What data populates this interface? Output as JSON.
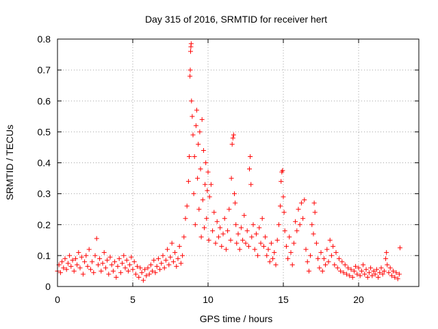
{
  "chart_data": {
    "type": "scatter",
    "title": "Day 315 of 2016, SRMTID for receiver hert",
    "xlabel": "GPS time / hours",
    "ylabel": "SRMTID / TECUs",
    "xlim": [
      0,
      24
    ],
    "ylim": [
      0,
      0.8
    ],
    "xticks": [
      0,
      5,
      10,
      15,
      20
    ],
    "yticks": [
      0,
      0.1,
      0.2,
      0.3,
      0.4,
      0.5,
      0.6,
      0.7,
      0.8
    ],
    "xtick_labels": [
      "0",
      "5",
      "10",
      "15",
      "20"
    ],
    "ytick_labels": [
      "0",
      "0.1",
      "0.2",
      "0.3",
      "0.4",
      "0.5",
      "0.6",
      "0.7",
      "0.8"
    ],
    "grid": true,
    "marker": "+",
    "color": "#ff0000",
    "series": [
      {
        "name": "SRMTID",
        "points": [
          [
            0.0,
            0.05
          ],
          [
            0.1,
            0.07
          ],
          [
            0.2,
            0.045
          ],
          [
            0.3,
            0.08
          ],
          [
            0.4,
            0.06
          ],
          [
            0.5,
            0.09
          ],
          [
            0.6,
            0.055
          ],
          [
            0.7,
            0.075
          ],
          [
            0.8,
            0.1
          ],
          [
            0.9,
            0.065
          ],
          [
            1.0,
            0.085
          ],
          [
            1.1,
            0.05
          ],
          [
            1.2,
            0.09
          ],
          [
            1.3,
            0.07
          ],
          [
            1.4,
            0.11
          ],
          [
            1.5,
            0.06
          ],
          [
            1.6,
            0.095
          ],
          [
            1.7,
            0.04
          ],
          [
            1.8,
            0.08
          ],
          [
            1.9,
            0.1
          ],
          [
            2.0,
            0.065
          ],
          [
            2.1,
            0.12
          ],
          [
            2.2,
            0.055
          ],
          [
            2.3,
            0.08
          ],
          [
            2.4,
            0.045
          ],
          [
            2.5,
            0.1
          ],
          [
            2.6,
            0.155
          ],
          [
            2.7,
            0.07
          ],
          [
            2.8,
            0.09
          ],
          [
            2.9,
            0.05
          ],
          [
            3.0,
            0.075
          ],
          [
            3.1,
            0.11
          ],
          [
            3.2,
            0.06
          ],
          [
            3.3,
            0.085
          ],
          [
            3.4,
            0.04
          ],
          [
            3.5,
            0.095
          ],
          [
            3.6,
            0.07
          ],
          [
            3.7,
            0.05
          ],
          [
            3.8,
            0.08
          ],
          [
            3.9,
            0.03
          ],
          [
            4.0,
            0.065
          ],
          [
            4.1,
            0.09
          ],
          [
            4.2,
            0.045
          ],
          [
            4.3,
            0.075
          ],
          [
            4.4,
            0.1
          ],
          [
            4.5,
            0.06
          ],
          [
            4.6,
            0.085
          ],
          [
            4.7,
            0.05
          ],
          [
            4.8,
            0.07
          ],
          [
            4.9,
            0.095
          ],
          [
            5.0,
            0.055
          ],
          [
            5.1,
            0.08
          ],
          [
            5.2,
            0.04
          ],
          [
            5.3,
            0.065
          ],
          [
            5.4,
            0.03
          ],
          [
            5.5,
            0.06
          ],
          [
            5.6,
            0.045
          ],
          [
            5.7,
            0.02
          ],
          [
            5.8,
            0.055
          ],
          [
            5.9,
            0.035
          ],
          [
            6.0,
            0.06
          ],
          [
            6.1,
            0.04
          ],
          [
            6.2,
            0.07
          ],
          [
            6.3,
            0.05
          ],
          [
            6.4,
            0.085
          ],
          [
            6.5,
            0.045
          ],
          [
            6.6,
            0.065
          ],
          [
            6.7,
            0.09
          ],
          [
            6.8,
            0.055
          ],
          [
            6.9,
            0.075
          ],
          [
            7.0,
            0.1
          ],
          [
            7.1,
            0.06
          ],
          [
            7.2,
            0.085
          ],
          [
            7.3,
            0.12
          ],
          [
            7.4,
            0.07
          ],
          [
            7.5,
            0.095
          ],
          [
            7.6,
            0.14
          ],
          [
            7.7,
            0.08
          ],
          [
            7.8,
            0.11
          ],
          [
            7.9,
            0.065
          ],
          [
            8.0,
            0.09
          ],
          [
            8.1,
            0.13
          ],
          [
            8.2,
            0.075
          ],
          [
            8.3,
            0.1
          ],
          [
            8.4,
            0.16
          ],
          [
            8.5,
            0.22
          ],
          [
            8.6,
            0.26
          ],
          [
            8.7,
            0.34
          ],
          [
            8.75,
            0.42
          ],
          [
            8.8,
            0.68
          ],
          [
            8.82,
            0.7
          ],
          [
            8.84,
            0.76
          ],
          [
            8.86,
            0.775
          ],
          [
            8.88,
            0.785
          ],
          [
            8.9,
            0.6
          ],
          [
            8.95,
            0.55
          ],
          [
            9.0,
            0.49
          ],
          [
            9.05,
            0.3
          ],
          [
            9.1,
            0.42
          ],
          [
            9.15,
            0.2
          ],
          [
            9.2,
            0.52
          ],
          [
            9.25,
            0.57
          ],
          [
            9.3,
            0.35
          ],
          [
            9.35,
            0.46
          ],
          [
            9.4,
            0.25
          ],
          [
            9.45,
            0.5
          ],
          [
            9.5,
            0.38
          ],
          [
            9.55,
            0.16
          ],
          [
            9.6,
            0.54
          ],
          [
            9.65,
            0.28
          ],
          [
            9.7,
            0.44
          ],
          [
            9.75,
            0.19
          ],
          [
            9.8,
            0.33
          ],
          [
            9.85,
            0.4
          ],
          [
            9.9,
            0.22
          ],
          [
            9.95,
            0.31
          ],
          [
            10.0,
            0.37
          ],
          [
            10.05,
            0.15
          ],
          [
            10.1,
            0.29
          ],
          [
            10.2,
            0.33
          ],
          [
            10.3,
            0.18
          ],
          [
            10.4,
            0.24
          ],
          [
            10.5,
            0.14
          ],
          [
            10.6,
            0.21
          ],
          [
            10.7,
            0.16
          ],
          [
            10.8,
            0.19
          ],
          [
            10.9,
            0.13
          ],
          [
            11.0,
            0.17
          ],
          [
            11.1,
            0.22
          ],
          [
            11.2,
            0.12
          ],
          [
            11.3,
            0.18
          ],
          [
            11.4,
            0.25
          ],
          [
            11.5,
            0.15
          ],
          [
            11.55,
            0.35
          ],
          [
            11.6,
            0.46
          ],
          [
            11.65,
            0.48
          ],
          [
            11.7,
            0.49
          ],
          [
            11.75,
            0.3
          ],
          [
            11.8,
            0.27
          ],
          [
            11.85,
            0.2
          ],
          [
            11.9,
            0.14
          ],
          [
            12.0,
            0.17
          ],
          [
            12.1,
            0.12
          ],
          [
            12.2,
            0.19
          ],
          [
            12.3,
            0.15
          ],
          [
            12.4,
            0.23
          ],
          [
            12.5,
            0.14
          ],
          [
            12.6,
            0.18
          ],
          [
            12.7,
            0.13
          ],
          [
            12.75,
            0.38
          ],
          [
            12.8,
            0.42
          ],
          [
            12.85,
            0.33
          ],
          [
            12.9,
            0.16
          ],
          [
            13.0,
            0.2
          ],
          [
            13.1,
            0.12
          ],
          [
            13.2,
            0.17
          ],
          [
            13.3,
            0.1
          ],
          [
            13.4,
            0.19
          ],
          [
            13.5,
            0.14
          ],
          [
            13.6,
            0.22
          ],
          [
            13.7,
            0.13
          ],
          [
            13.8,
            0.16
          ],
          [
            13.9,
            0.1
          ],
          [
            14.0,
            0.12
          ],
          [
            14.1,
            0.08
          ],
          [
            14.2,
            0.14
          ],
          [
            14.3,
            0.09
          ],
          [
            14.4,
            0.11
          ],
          [
            14.5,
            0.07
          ],
          [
            14.6,
            0.15
          ],
          [
            14.7,
            0.2
          ],
          [
            14.8,
            0.26
          ],
          [
            14.85,
            0.34
          ],
          [
            14.9,
            0.37
          ],
          [
            14.95,
            0.375
          ],
          [
            15.0,
            0.29
          ],
          [
            15.05,
            0.24
          ],
          [
            15.1,
            0.18
          ],
          [
            15.2,
            0.13
          ],
          [
            15.3,
            0.09
          ],
          [
            15.4,
            0.16
          ],
          [
            15.5,
            0.11
          ],
          [
            15.6,
            0.07
          ],
          [
            15.7,
            0.14
          ],
          [
            15.8,
            0.21
          ],
          [
            15.9,
            0.18
          ],
          [
            16.0,
            0.25
          ],
          [
            16.1,
            0.2
          ],
          [
            16.2,
            0.27
          ],
          [
            16.3,
            0.22
          ],
          [
            16.4,
            0.28
          ],
          [
            16.5,
            0.12
          ],
          [
            16.6,
            0.08
          ],
          [
            16.7,
            0.05
          ],
          [
            16.8,
            0.1
          ],
          [
            16.9,
            0.2
          ],
          [
            17.0,
            0.17
          ],
          [
            17.05,
            0.27
          ],
          [
            17.1,
            0.24
          ],
          [
            17.2,
            0.14
          ],
          [
            17.3,
            0.09
          ],
          [
            17.4,
            0.06
          ],
          [
            17.5,
            0.11
          ],
          [
            17.6,
            0.05
          ],
          [
            17.7,
            0.09
          ],
          [
            17.8,
            0.07
          ],
          [
            17.9,
            0.12
          ],
          [
            18.0,
            0.08
          ],
          [
            18.1,
            0.15
          ],
          [
            18.2,
            0.1
          ],
          [
            18.3,
            0.13
          ],
          [
            18.4,
            0.07
          ],
          [
            18.5,
            0.11
          ],
          [
            18.6,
            0.06
          ],
          [
            18.7,
            0.09
          ],
          [
            18.8,
            0.05
          ],
          [
            18.9,
            0.08
          ],
          [
            19.0,
            0.045
          ],
          [
            19.1,
            0.07
          ],
          [
            19.2,
            0.04
          ],
          [
            19.3,
            0.06
          ],
          [
            19.4,
            0.035
          ],
          [
            19.5,
            0.055
          ],
          [
            19.6,
            0.03
          ],
          [
            19.7,
            0.05
          ],
          [
            19.8,
            0.065
          ],
          [
            19.9,
            0.04
          ],
          [
            20.0,
            0.06
          ],
          [
            20.1,
            0.035
          ],
          [
            20.2,
            0.05
          ],
          [
            20.3,
            0.07
          ],
          [
            20.4,
            0.04
          ],
          [
            20.5,
            0.055
          ],
          [
            20.6,
            0.03
          ],
          [
            20.7,
            0.045
          ],
          [
            20.8,
            0.06
          ],
          [
            20.9,
            0.035
          ],
          [
            21.0,
            0.05
          ],
          [
            21.1,
            0.04
          ],
          [
            21.2,
            0.055
          ],
          [
            21.3,
            0.03
          ],
          [
            21.4,
            0.045
          ],
          [
            21.5,
            0.06
          ],
          [
            21.6,
            0.04
          ],
          [
            21.7,
            0.05
          ],
          [
            21.8,
            0.09
          ],
          [
            21.85,
            0.11
          ],
          [
            21.9,
            0.07
          ],
          [
            22.0,
            0.045
          ],
          [
            22.1,
            0.06
          ],
          [
            22.2,
            0.035
          ],
          [
            22.3,
            0.05
          ],
          [
            22.4,
            0.03
          ],
          [
            22.5,
            0.045
          ],
          [
            22.6,
            0.025
          ],
          [
            22.7,
            0.04
          ],
          [
            22.75,
            0.125
          ]
        ]
      }
    ]
  }
}
